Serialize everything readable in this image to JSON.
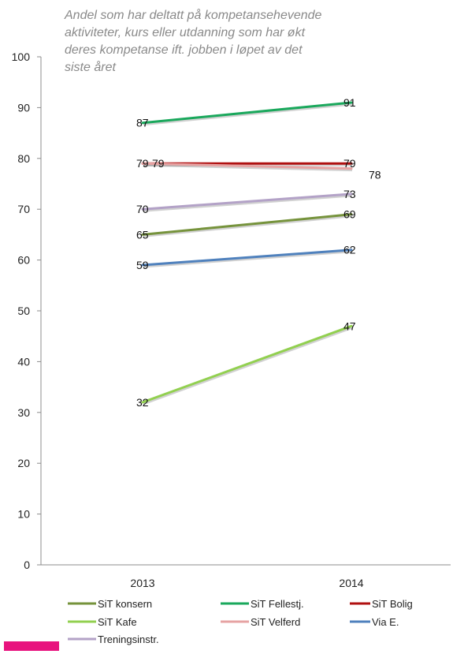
{
  "chart_data": {
    "type": "line",
    "title": "",
    "subtitle_lines": [
      "Andel som har deltatt på kompetansehevende",
      "aktiviteter, kurs eller utdanning som har økt",
      "deres kompetanse ift. jobben i løpet av det",
      "siste året"
    ],
    "categories": [
      "2013",
      "2014"
    ],
    "ylim": [
      0,
      100
    ],
    "y_ticks": [
      "0",
      "10",
      "20",
      "30",
      "40",
      "50",
      "60",
      "70",
      "80",
      "90",
      "100"
    ],
    "grid": false,
    "legend_position": "bottom",
    "series": [
      {
        "name": "SiT konsern",
        "values": [
          65,
          69
        ],
        "labels": [
          "65",
          "69"
        ],
        "color": "#76933c"
      },
      {
        "name": "SiT Fellestj.",
        "values": [
          87,
          91
        ],
        "labels": [
          "87",
          "91"
        ],
        "color": "#1aa85c"
      },
      {
        "name": "SiT Bolig",
        "values": [
          79,
          79
        ],
        "labels": [
          "79",
          "79"
        ],
        "color": "#b01010"
      },
      {
        "name": "SiT Kafe",
        "values": [
          32,
          47
        ],
        "labels": [
          "32",
          "47"
        ],
        "color": "#92d050"
      },
      {
        "name": "SiT Velferd",
        "values": [
          79,
          78
        ],
        "labels": [
          "79",
          "78"
        ],
        "color": "#e6a3a3"
      },
      {
        "name": "Via E.",
        "values": [
          59,
          62
        ],
        "labels": [
          "59",
          "62"
        ],
        "color": "#4f81bd"
      },
      {
        "name": "Treningsinstr.",
        "values": [
          70,
          73
        ],
        "labels": [
          "70",
          "73"
        ],
        "color": "#b3a2c7"
      }
    ],
    "extra_legend_swatch_color": "#e8137e"
  }
}
